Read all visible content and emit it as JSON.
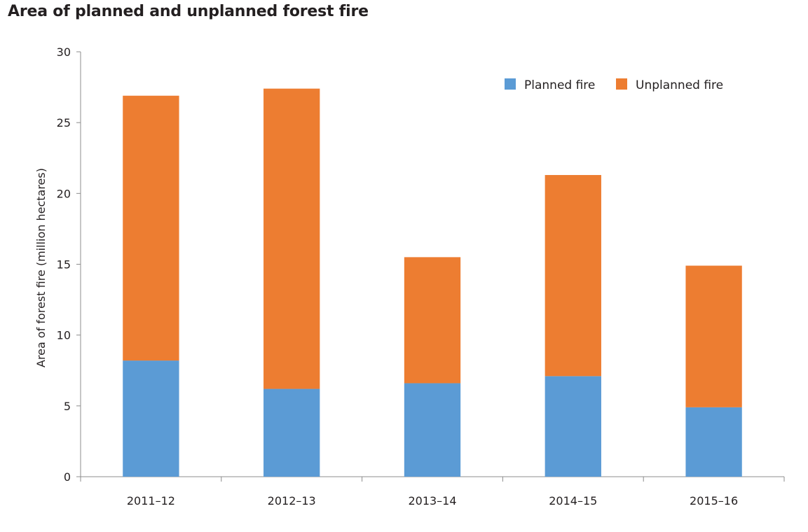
{
  "chart_data": {
    "type": "bar",
    "stacked": true,
    "title": "Area of planned and unplanned forest fire",
    "xlabel": "",
    "ylabel": "Area of forest fire (million hectares)",
    "ylim": [
      0,
      30
    ],
    "yticks": [
      0,
      5,
      10,
      15,
      20,
      25,
      30
    ],
    "categories": [
      "2011–12",
      "2012–13",
      "2013–14",
      "2014–15",
      "2015–16"
    ],
    "series": [
      {
        "name": "Planned fire",
        "color": "#5b9bd5",
        "values": [
          8.2,
          6.2,
          6.6,
          7.1,
          4.9
        ]
      },
      {
        "name": "Unplanned fire",
        "color": "#ed7d31",
        "values": [
          18.7,
          21.2,
          8.9,
          14.2,
          10.0
        ]
      }
    ],
    "legend_position": "top-right",
    "grid": false
  }
}
